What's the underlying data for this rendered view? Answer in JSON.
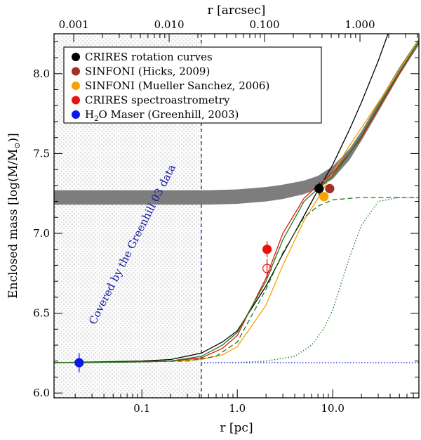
{
  "chart_data": {
    "type": "line",
    "xscale": "log",
    "xlim": [
      0.012,
      80
    ],
    "ylim": [
      5.97,
      8.25
    ],
    "xlabel": "r [pc]",
    "ylabel": "Enclosed mass [log(M/M",
    "ylabel_sub": "⊙",
    "ylabel_end": ")]",
    "top_axis_label": "r [arcsec]",
    "xticks": [
      {
        "value": 0.1,
        "label": "0.1"
      },
      {
        "value": 1.0,
        "label": "1.0"
      },
      {
        "value": 10.0,
        "label": "10.0"
      }
    ],
    "yticks": [
      {
        "value": 6.0,
        "label": "6.0"
      },
      {
        "value": 6.5,
        "label": "6.5"
      },
      {
        "value": 7.0,
        "label": "7.0"
      },
      {
        "value": 7.5,
        "label": "7.5"
      },
      {
        "value": 8.0,
        "label": "8.0"
      }
    ],
    "top_ticks": [
      {
        "arcsec": 0.001,
        "label": "0.001"
      },
      {
        "arcsec": 0.01,
        "label": "0.010"
      },
      {
        "arcsec": 0.1,
        "label": "0.100"
      },
      {
        "arcsec": 1.0,
        "label": "1.000"
      }
    ],
    "pc_per_arcsec": 19.3,
    "legend": [
      {
        "label": "CRIRES rotation curves",
        "color": "#000000"
      },
      {
        "label": "SINFONI (Hicks, 2009)",
        "color": "#a0302a"
      },
      {
        "label": "SINFONI (Mueller Sanchez, 2006)",
        "color": "#f5a300"
      },
      {
        "label": "CRIRES spectroastrometry",
        "color": "#e8130f"
      },
      {
        "label": "H",
        "sub": "2",
        "rest": "O Maser (Greenhill, 2003)",
        "color": "#0a19e8"
      }
    ],
    "shaded_region": {
      "x_end": 0.42,
      "label": "Covered by the Greenhill 03 data",
      "label_color": "#1414a0"
    },
    "band": {
      "color": "#7d7d7d",
      "lower": [
        [
          0.012,
          7.18
        ],
        [
          0.5,
          7.18
        ],
        [
          1,
          7.185
        ],
        [
          2,
          7.2
        ],
        [
          3,
          7.215
        ],
        [
          5,
          7.245
        ],
        [
          7,
          7.28
        ],
        [
          10,
          7.34
        ],
        [
          15,
          7.46
        ],
        [
          20,
          7.58
        ],
        [
          30,
          7.76
        ],
        [
          50,
          7.99
        ],
        [
          80,
          8.18
        ]
      ],
      "upper": [
        [
          0.012,
          7.27
        ],
        [
          0.5,
          7.27
        ],
        [
          1,
          7.275
        ],
        [
          2,
          7.29
        ],
        [
          3,
          7.305
        ],
        [
          5,
          7.33
        ],
        [
          7,
          7.36
        ],
        [
          10,
          7.42
        ],
        [
          15,
          7.53
        ],
        [
          20,
          7.64
        ],
        [
          30,
          7.82
        ],
        [
          50,
          8.04
        ],
        [
          80,
          8.22
        ]
      ]
    },
    "series": [
      {
        "name": "black model",
        "color": "#000000",
        "style": "solid",
        "points": [
          [
            0.012,
            6.19
          ],
          [
            0.1,
            6.2
          ],
          [
            0.2,
            6.21
          ],
          [
            0.42,
            6.25
          ],
          [
            0.7,
            6.32
          ],
          [
            1,
            6.39
          ],
          [
            2,
            6.67
          ],
          [
            3,
            6.87
          ],
          [
            5,
            7.11
          ],
          [
            7,
            7.27
          ],
          [
            10,
            7.43
          ],
          [
            15,
            7.65
          ],
          [
            20,
            7.82
          ],
          [
            30,
            8.08
          ],
          [
            38,
            8.25
          ]
        ]
      },
      {
        "name": "orange model",
        "color": "#f5a300",
        "style": "solid",
        "points": [
          [
            0.012,
            6.19
          ],
          [
            0.1,
            6.195
          ],
          [
            0.2,
            6.2
          ],
          [
            0.42,
            6.21
          ],
          [
            0.7,
            6.24
          ],
          [
            1,
            6.29
          ],
          [
            2,
            6.55
          ],
          [
            3,
            6.8
          ],
          [
            5,
            7.08
          ],
          [
            7,
            7.22
          ],
          [
            10,
            7.38
          ],
          [
            15,
            7.55
          ],
          [
            20,
            7.66
          ],
          [
            30,
            7.82
          ],
          [
            50,
            8.02
          ],
          [
            80,
            8.21
          ]
        ]
      },
      {
        "name": "red model",
        "color": "#e8130f",
        "style": "solid",
        "points": [
          [
            0.012,
            6.19
          ],
          [
            0.1,
            6.195
          ],
          [
            0.2,
            6.2
          ],
          [
            0.42,
            6.22
          ],
          [
            0.7,
            6.28
          ],
          [
            1,
            6.36
          ],
          [
            2,
            6.72
          ],
          [
            3,
            7.0
          ],
          [
            5,
            7.22
          ],
          [
            7,
            7.3
          ],
          [
            10,
            7.38
          ],
          [
            15,
            7.5
          ],
          [
            20,
            7.6
          ],
          [
            30,
            7.78
          ],
          [
            50,
            8.0
          ],
          [
            80,
            8.2
          ]
        ]
      },
      {
        "name": "green model",
        "color": "#1c7a1c",
        "style": "solid",
        "points": [
          [
            0.012,
            6.19
          ],
          [
            0.1,
            6.195
          ],
          [
            0.2,
            6.2
          ],
          [
            0.42,
            6.23
          ],
          [
            0.7,
            6.3
          ],
          [
            1,
            6.38
          ],
          [
            2,
            6.7
          ],
          [
            3,
            6.96
          ],
          [
            5,
            7.2
          ],
          [
            7,
            7.28
          ],
          [
            10,
            7.36
          ],
          [
            15,
            7.5
          ],
          [
            20,
            7.61
          ],
          [
            30,
            7.79
          ],
          [
            50,
            8.01
          ],
          [
            80,
            8.2
          ]
        ]
      },
      {
        "name": "green dashed",
        "color": "#1c7a1c",
        "style": "dashed",
        "points": [
          [
            0.012,
            6.19
          ],
          [
            0.1,
            6.195
          ],
          [
            0.3,
            6.2
          ],
          [
            0.6,
            6.23
          ],
          [
            1,
            6.32
          ],
          [
            2,
            6.65
          ],
          [
            3,
            6.88
          ],
          [
            5,
            7.1
          ],
          [
            7,
            7.17
          ],
          [
            10,
            7.21
          ],
          [
            20,
            7.225
          ],
          [
            80,
            7.225
          ]
        ]
      },
      {
        "name": "green dotted",
        "color": "#1c7a1c",
        "style": "dotted",
        "points": [
          [
            0.42,
            6.19
          ],
          [
            1,
            6.19
          ],
          [
            2,
            6.2
          ],
          [
            4,
            6.23
          ],
          [
            6,
            6.3
          ],
          [
            8,
            6.4
          ],
          [
            10,
            6.52
          ],
          [
            15,
            6.85
          ],
          [
            20,
            7.05
          ],
          [
            30,
            7.2
          ],
          [
            50,
            7.225
          ],
          [
            80,
            7.225
          ]
        ]
      },
      {
        "name": "blue dotted",
        "color": "#0a19e8",
        "style": "dotted",
        "points": [
          [
            0.42,
            6.19
          ],
          [
            80,
            6.19
          ]
        ]
      }
    ],
    "points": [
      {
        "name": "maser",
        "x": 0.022,
        "y": 6.19,
        "yerr": 0.06,
        "color": "#0a19e8",
        "filled": true
      },
      {
        "name": "crires-spectro",
        "x": 2.05,
        "y": 6.9,
        "yerr": 0.05,
        "color": "#e8130f",
        "filled": true
      },
      {
        "name": "crires-spectro-open",
        "x": 2.05,
        "y": 6.78,
        "yerr": 0.06,
        "color": "#e8130f",
        "filled": false
      },
      {
        "name": "crires-rotation",
        "x": 7.2,
        "y": 7.28,
        "yerr": 0.04,
        "color": "#000000",
        "filled": true
      },
      {
        "name": "sinfoni-hicks",
        "x": 9.3,
        "y": 7.28,
        "yerr": 0.0,
        "color": "#a0302a",
        "filled": true
      },
      {
        "name": "sinfoni-mueller",
        "x": 8.1,
        "y": 7.23,
        "yerr": 0.0,
        "color": "#f5a300",
        "filled": true
      }
    ]
  }
}
